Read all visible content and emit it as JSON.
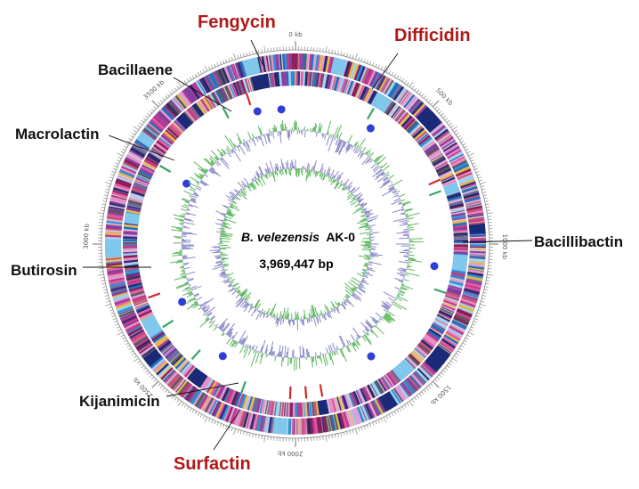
{
  "center": {
    "species": "B. velezensis",
    "strain": "AK-0",
    "size": "3,969,447 bp"
  },
  "kb_labels": [
    "0 kb",
    "500 kb",
    "1000 kb",
    "1500 kb",
    "2000 kb",
    "2500 kb",
    "3000 kb",
    "3500 kb"
  ],
  "clusters": [
    {
      "name": "Fengycin",
      "highlight": true
    },
    {
      "name": "Difficidin",
      "highlight": true
    },
    {
      "name": "Bacillaene",
      "highlight": false
    },
    {
      "name": "Macrolactin",
      "highlight": false
    },
    {
      "name": "Bacillibactin",
      "highlight": false
    },
    {
      "name": "Butirosin",
      "highlight": false
    },
    {
      "name": "Kijanimicin",
      "highlight": false
    },
    {
      "name": "Surfactin",
      "highlight": true
    }
  ],
  "colors": {
    "highlight": "#b01818",
    "gc_content": "#5db85d",
    "gc_skew": "#8a8ac8",
    "cluster_dot": "#2f3fd6",
    "rrna": "#d42a2a",
    "trna": "#3aa36a"
  }
}
